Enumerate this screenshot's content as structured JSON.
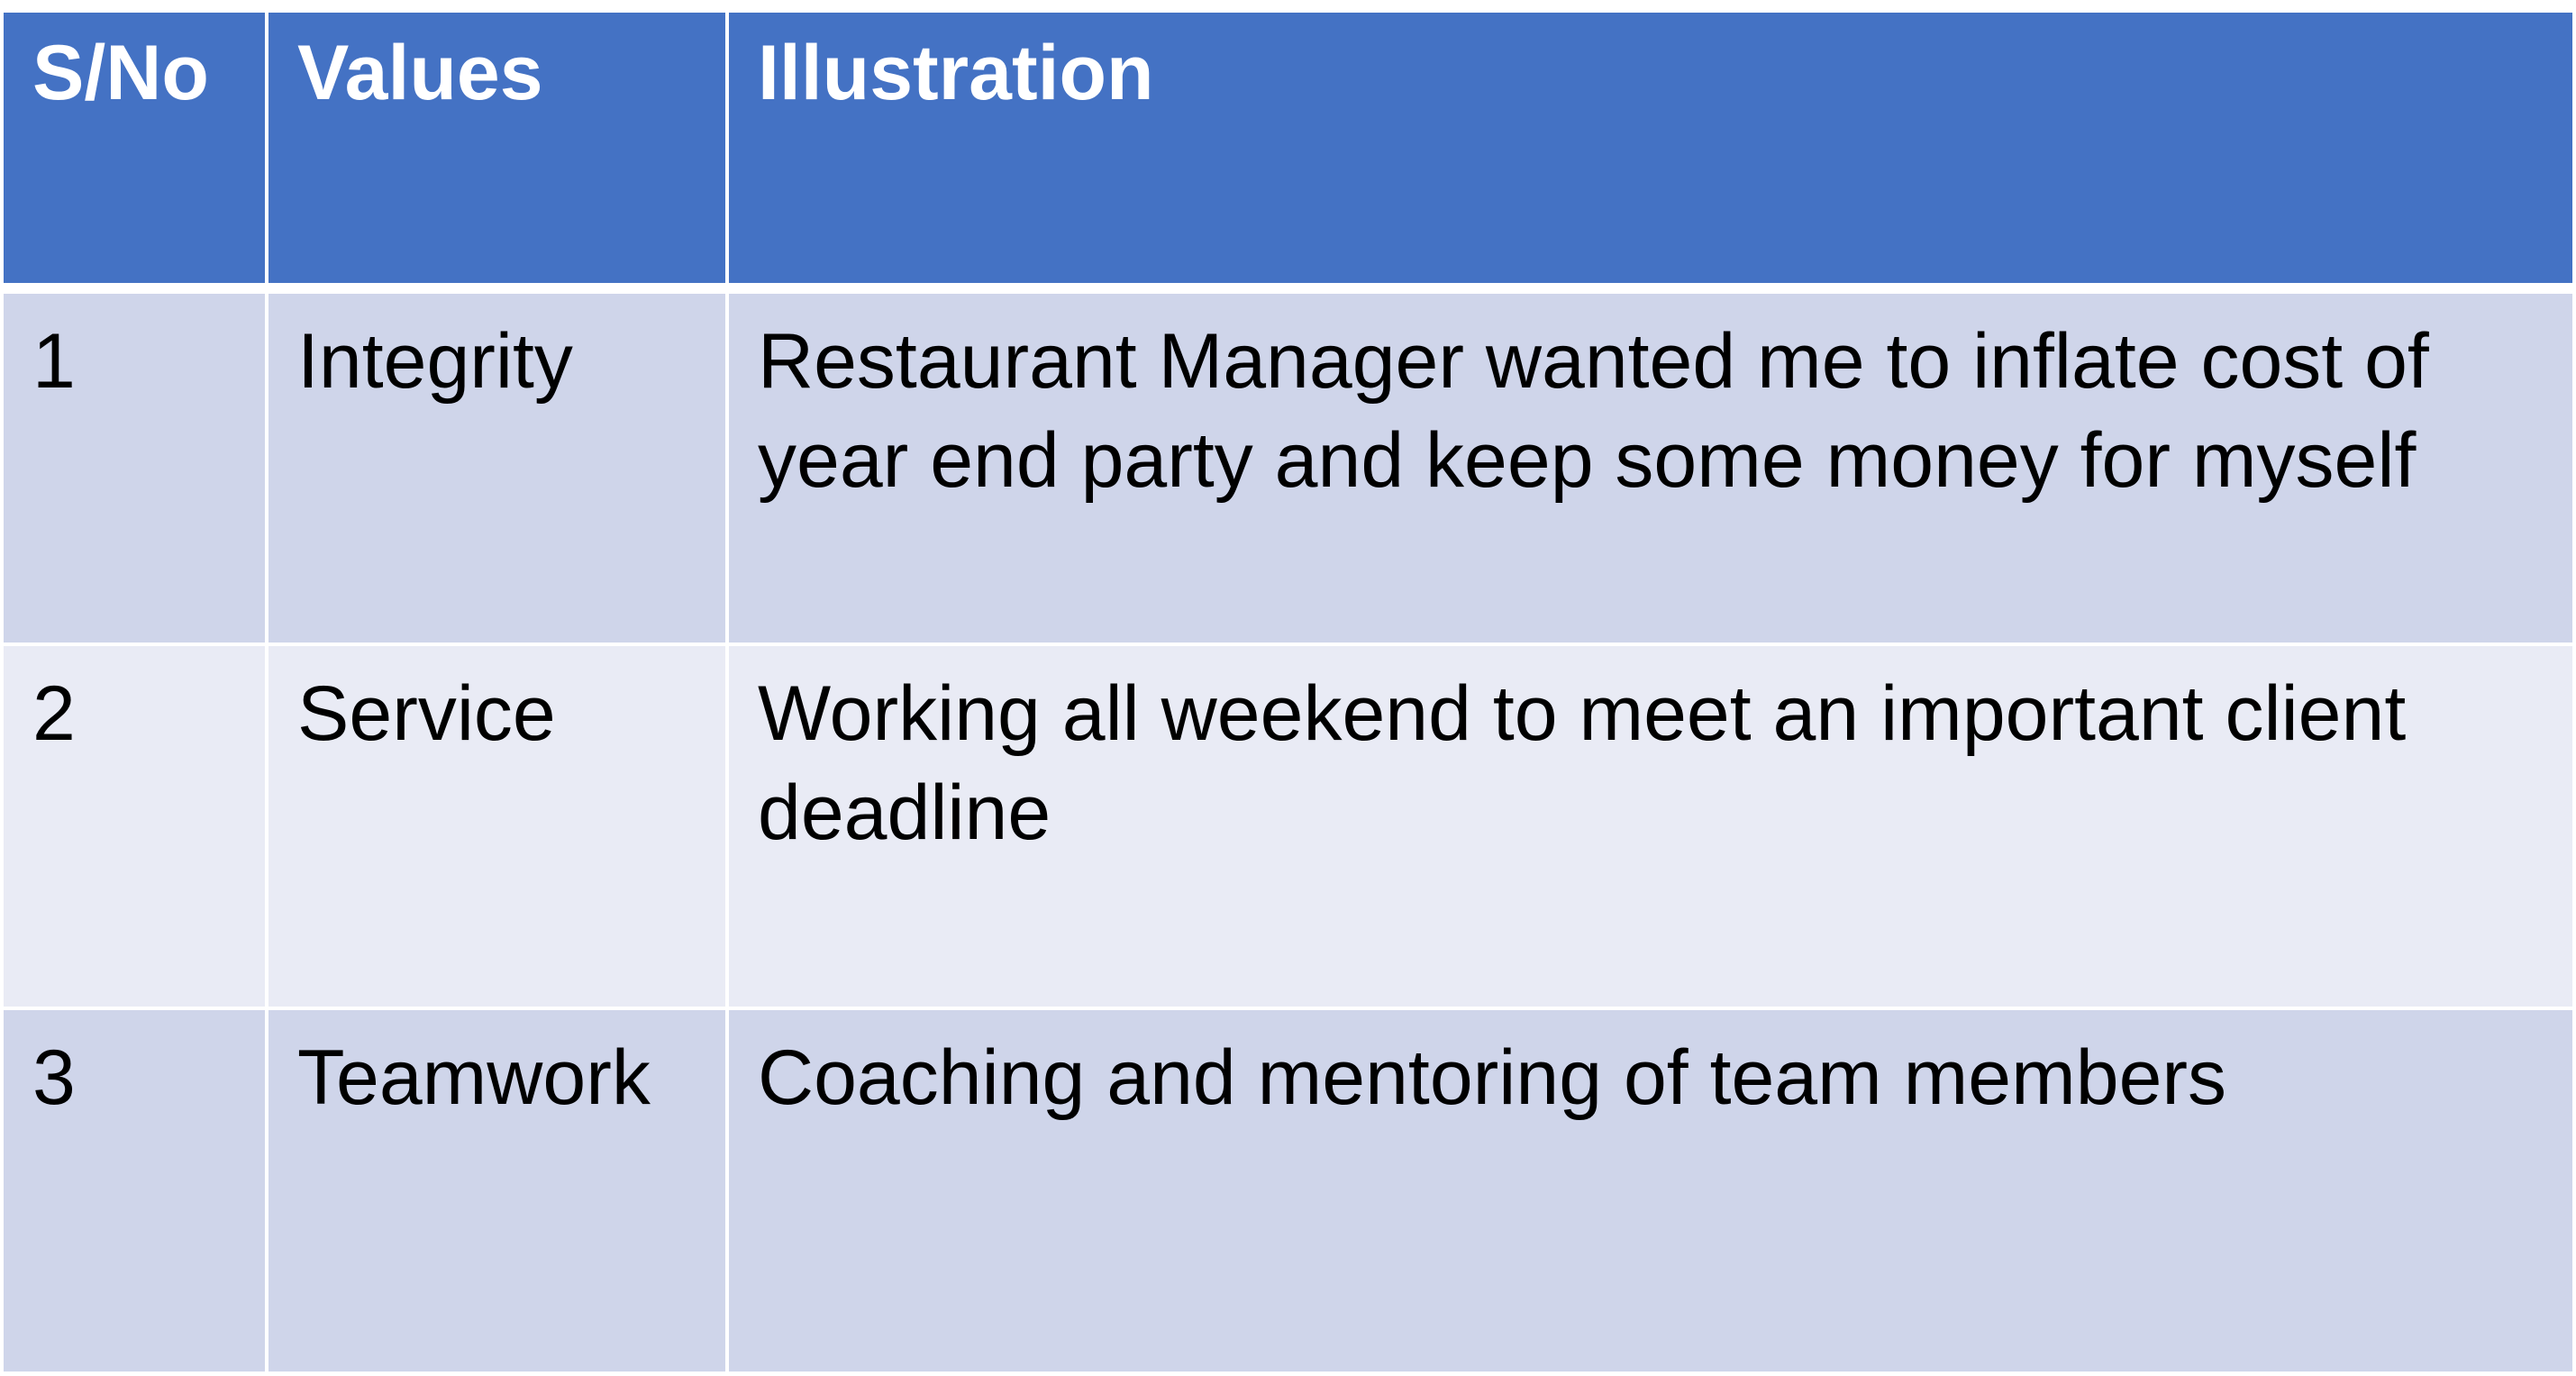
{
  "table": {
    "headers": {
      "sno": "S/No",
      "values": "Values",
      "illustration": "Illustration"
    },
    "rows": [
      {
        "sno": "1",
        "value": "Integrity",
        "illustration": "Restaurant Manager wanted me to inflate cost of year end party and keep some money for myself"
      },
      {
        "sno": "2",
        "value": "Service",
        "illustration": "Working all weekend to meet an important client deadline"
      },
      {
        "sno": "3",
        "value": "Teamwork",
        "illustration": "Coaching and mentoring of team members"
      }
    ]
  },
  "colors": {
    "header_bg": "#4472c4",
    "row_dark_bg": "#cfd5ea",
    "row_light_bg": "#e9ebf5",
    "header_text": "#ffffff",
    "body_text": "#000000"
  }
}
